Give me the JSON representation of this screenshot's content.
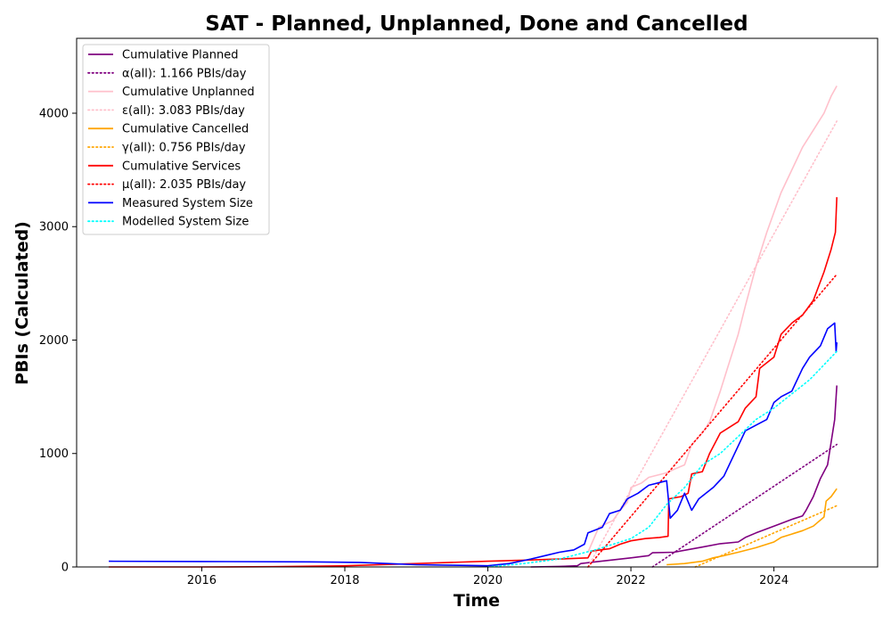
{
  "chart_data": {
    "type": "line",
    "title": "SAT - Planned, Unplanned, Done  and Cancelled",
    "xlabel": "Time",
    "ylabel": "PBIs (Calculated)",
    "xlim": [
      2014.25,
      2025.45
    ],
    "ylim": [
      0,
      4660
    ],
    "xticks": [
      2016,
      2018,
      2020,
      2022,
      2024
    ],
    "xtick_labels": [
      "2016",
      "2018",
      "2020",
      "2022",
      "2024"
    ],
    "yticks": [
      0,
      1000,
      2000,
      3000,
      4000
    ],
    "ytick_labels": [
      "0",
      "1000",
      "2000",
      "3000",
      "4000"
    ],
    "grid": false,
    "legend_position": "top-left",
    "series": [
      {
        "name": "Cumulative Planned",
        "color": "#800080",
        "style": "solid",
        "points": [
          [
            2020.6,
            0
          ],
          [
            2021.0,
            5
          ],
          [
            2021.25,
            10
          ],
          [
            2021.3,
            30
          ],
          [
            2021.5,
            45
          ],
          [
            2022.0,
            80
          ],
          [
            2022.25,
            100
          ],
          [
            2022.3,
            125
          ],
          [
            2022.6,
            130
          ],
          [
            2023.0,
            175
          ],
          [
            2023.25,
            205
          ],
          [
            2023.5,
            220
          ],
          [
            2023.6,
            260
          ],
          [
            2023.75,
            300
          ],
          [
            2024.0,
            360
          ],
          [
            2024.25,
            420
          ],
          [
            2024.4,
            450
          ],
          [
            2024.45,
            500
          ],
          [
            2024.55,
            620
          ],
          [
            2024.65,
            780
          ],
          [
            2024.75,
            900
          ],
          [
            2024.85,
            1300
          ],
          [
            2024.88,
            1600
          ]
        ]
      },
      {
        "name": "α(all): 1.166 PBIs/day",
        "color": "#800080",
        "style": "dotted",
        "points": [
          [
            2022.3,
            0
          ],
          [
            2024.88,
            1080
          ]
        ]
      },
      {
        "name": "Cumulative Unplanned",
        "color": "#ffc0cb",
        "style": "solid",
        "points": [
          [
            2021.4,
            130
          ],
          [
            2021.55,
            350
          ],
          [
            2021.75,
            410
          ],
          [
            2021.85,
            500
          ],
          [
            2021.95,
            570
          ],
          [
            2022.0,
            700
          ],
          [
            2022.15,
            740
          ],
          [
            2022.25,
            790
          ],
          [
            2022.5,
            830
          ],
          [
            2022.6,
            860
          ],
          [
            2022.75,
            900
          ],
          [
            2022.85,
            1080
          ],
          [
            2023.0,
            1180
          ],
          [
            2023.1,
            1280
          ],
          [
            2023.25,
            1550
          ],
          [
            2023.35,
            1750
          ],
          [
            2023.5,
            2050
          ],
          [
            2023.6,
            2300
          ],
          [
            2023.75,
            2650
          ],
          [
            2023.9,
            2950
          ],
          [
            2024.1,
            3300
          ],
          [
            2024.25,
            3500
          ],
          [
            2024.4,
            3700
          ],
          [
            2024.55,
            3850
          ],
          [
            2024.7,
            4000
          ],
          [
            2024.8,
            4150
          ],
          [
            2024.88,
            4240
          ]
        ]
      },
      {
        "name": "ε(all): 3.083 PBIs/day",
        "color": "#ffc0cb",
        "style": "dotted",
        "points": [
          [
            2021.4,
            0
          ],
          [
            2024.88,
            3930
          ]
        ]
      },
      {
        "name": "Cumulative Cancelled",
        "color": "#ffa500",
        "style": "solid",
        "points": [
          [
            2022.5,
            20
          ],
          [
            2022.75,
            30
          ],
          [
            2023.0,
            50
          ],
          [
            2023.15,
            80
          ],
          [
            2023.3,
            100
          ],
          [
            2023.5,
            130
          ],
          [
            2023.75,
            170
          ],
          [
            2024.0,
            220
          ],
          [
            2024.1,
            260
          ],
          [
            2024.25,
            290
          ],
          [
            2024.4,
            320
          ],
          [
            2024.55,
            360
          ],
          [
            2024.7,
            440
          ],
          [
            2024.73,
            580
          ],
          [
            2024.8,
            620
          ],
          [
            2024.88,
            690
          ]
        ]
      },
      {
        "name": "γ(all): 0.756 PBIs/day",
        "color": "#ffa500",
        "style": "dotted",
        "points": [
          [
            2022.9,
            0
          ],
          [
            2024.88,
            540
          ]
        ]
      },
      {
        "name": "Cumulative Services",
        "color": "#ff0000",
        "style": "solid",
        "points": [
          [
            2014.7,
            0
          ],
          [
            2016.0,
            0
          ],
          [
            2017.0,
            2
          ],
          [
            2018.0,
            10
          ],
          [
            2019.0,
            30
          ],
          [
            2020.0,
            50
          ],
          [
            2020.5,
            60
          ],
          [
            2021.0,
            70
          ],
          [
            2021.4,
            80
          ],
          [
            2021.45,
            140
          ],
          [
            2021.7,
            160
          ],
          [
            2021.85,
            200
          ],
          [
            2022.0,
            230
          ],
          [
            2022.2,
            250
          ],
          [
            2022.4,
            260
          ],
          [
            2022.52,
            270
          ],
          [
            2022.53,
            600
          ],
          [
            2022.7,
            620
          ],
          [
            2022.8,
            650
          ],
          [
            2022.85,
            820
          ],
          [
            2023.0,
            840
          ],
          [
            2023.1,
            1000
          ],
          [
            2023.25,
            1180
          ],
          [
            2023.5,
            1280
          ],
          [
            2023.6,
            1400
          ],
          [
            2023.75,
            1500
          ],
          [
            2023.8,
            1750
          ],
          [
            2024.0,
            1850
          ],
          [
            2024.1,
            2050
          ],
          [
            2024.25,
            2150
          ],
          [
            2024.4,
            2220
          ],
          [
            2024.55,
            2350
          ],
          [
            2024.7,
            2600
          ],
          [
            2024.8,
            2800
          ],
          [
            2024.86,
            2950
          ],
          [
            2024.88,
            3260
          ]
        ]
      },
      {
        "name": "μ(all): 2.035 PBIs/day",
        "color": "#ff0000",
        "style": "dotted",
        "points": [
          [
            2021.4,
            0
          ],
          [
            2024.88,
            2580
          ]
        ]
      },
      {
        "name": "Measured System Size",
        "color": "#0000ff",
        "style": "solid",
        "points": [
          [
            2014.7,
            50
          ],
          [
            2016.0,
            48
          ],
          [
            2017.5,
            45
          ],
          [
            2018.2,
            40
          ],
          [
            2018.6,
            30
          ],
          [
            2019.0,
            20
          ],
          [
            2019.5,
            15
          ],
          [
            2020.0,
            10
          ],
          [
            2020.3,
            30
          ],
          [
            2020.6,
            70
          ],
          [
            2020.8,
            100
          ],
          [
            2021.0,
            130
          ],
          [
            2021.2,
            150
          ],
          [
            2021.35,
            200
          ],
          [
            2021.4,
            300
          ],
          [
            2021.6,
            350
          ],
          [
            2021.7,
            470
          ],
          [
            2021.85,
            500
          ],
          [
            2021.95,
            600
          ],
          [
            2022.1,
            650
          ],
          [
            2022.25,
            720
          ],
          [
            2022.5,
            760
          ],
          [
            2022.55,
            430
          ],
          [
            2022.65,
            500
          ],
          [
            2022.75,
            650
          ],
          [
            2022.85,
            500
          ],
          [
            2022.95,
            600
          ],
          [
            2023.15,
            700
          ],
          [
            2023.3,
            800
          ],
          [
            2023.45,
            1000
          ],
          [
            2023.6,
            1200
          ],
          [
            2023.75,
            1250
          ],
          [
            2023.9,
            1300
          ],
          [
            2024.0,
            1450
          ],
          [
            2024.1,
            1500
          ],
          [
            2024.25,
            1550
          ],
          [
            2024.4,
            1750
          ],
          [
            2024.5,
            1850
          ],
          [
            2024.65,
            1950
          ],
          [
            2024.75,
            2100
          ],
          [
            2024.85,
            2150
          ],
          [
            2024.87,
            1900
          ],
          [
            2024.88,
            1980
          ]
        ]
      },
      {
        "name": "Modelled System Size",
        "color": "#00ffff",
        "style": "dotted",
        "points": [
          [
            2020.0,
            0
          ],
          [
            2020.5,
            30
          ],
          [
            2021.0,
            70
          ],
          [
            2021.5,
            150
          ],
          [
            2022.0,
            250
          ],
          [
            2022.25,
            350
          ],
          [
            2022.5,
            550
          ],
          [
            2022.75,
            700
          ],
          [
            2023.0,
            900
          ],
          [
            2023.25,
            1000
          ],
          [
            2023.5,
            1150
          ],
          [
            2023.75,
            1300
          ],
          [
            2024.0,
            1400
          ],
          [
            2024.5,
            1650
          ],
          [
            2024.88,
            1900
          ]
        ]
      }
    ]
  }
}
